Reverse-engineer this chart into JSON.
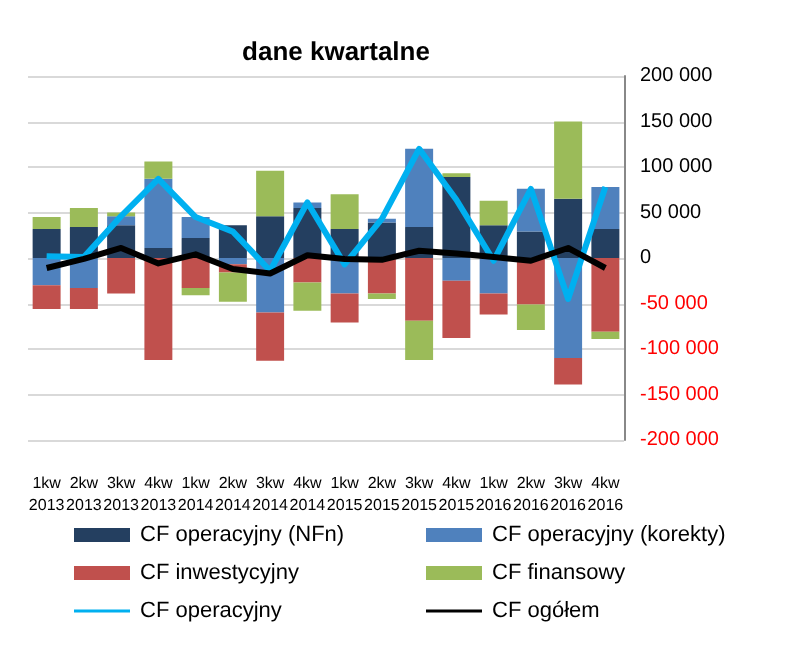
{
  "chart_data": {
    "type": "bar",
    "title": "dane kwartalne",
    "stacked": true,
    "categories": [
      "1kw 2013",
      "2kw 2013",
      "3kw 2013",
      "4kw 2013",
      "1kw 2014",
      "2kw 2014",
      "3kw 2014",
      "4kw 2014",
      "1kw 2015",
      "2kw 2015",
      "3kw 2015",
      "4kw 2015",
      "1kw 2016",
      "2kw 2016",
      "3kw 2016",
      "4kw 2016"
    ],
    "series": [
      {
        "name": "CF operacyjny (NFn)",
        "color": "#243f60",
        "values": [
          32000,
          34000,
          36000,
          11000,
          22000,
          36000,
          46000,
          55000,
          32000,
          39000,
          34000,
          89000,
          36000,
          29000,
          65000,
          32000
        ]
      },
      {
        "name": "CF operacyjny (korekty)",
        "color": "#4f81bd",
        "values": [
          -30000,
          -33000,
          10000,
          76000,
          23000,
          -7000,
          -60000,
          6000,
          -39000,
          4000,
          86000,
          -25000,
          -39000,
          47000,
          -110000,
          46000
        ]
      },
      {
        "name": "CF inwestycyjny",
        "color": "#c0504d",
        "values": [
          -26000,
          -23000,
          -39000,
          -112000,
          -33000,
          -9000,
          -53000,
          -27000,
          -32000,
          -39000,
          -69000,
          -63000,
          -23000,
          -51000,
          -29000,
          -81000
        ]
      },
      {
        "name": "CF finansowy",
        "color": "#9bbb59",
        "values": [
          13000,
          21000,
          4000,
          19000,
          -8000,
          -32000,
          50000,
          -31000,
          38000,
          -6000,
          -43000,
          4000,
          27000,
          -28000,
          85000,
          -8000
        ]
      },
      {
        "name": "CF operacyjny",
        "type": "line",
        "color": "#00b0f0",
        "values": [
          2000,
          1000,
          46000,
          87000,
          45000,
          29000,
          -14000,
          61000,
          -7000,
          43000,
          120000,
          64000,
          -3000,
          76000,
          -45000,
          78000
        ]
      },
      {
        "name": "CF ogółem",
        "type": "line",
        "color": "#000000",
        "values": [
          -11000,
          -1000,
          11000,
          -6000,
          4000,
          -12000,
          -17000,
          3000,
          -1000,
          -2000,
          8000,
          5000,
          1000,
          -3000,
          11000,
          -11000
        ]
      }
    ],
    "ylim": [
      -200000,
      200000
    ],
    "yticks": [
      {
        "value": -200000,
        "label": "-200 000"
      },
      {
        "value": -150000,
        "label": "-150 000"
      },
      {
        "value": -100000,
        "label": "-100 000"
      },
      {
        "value": -50000,
        "label": "-50 000"
      },
      {
        "value": 0,
        "label": "0"
      },
      {
        "value": 50000,
        "label": "50 000"
      },
      {
        "value": 100000,
        "label": "100 000"
      },
      {
        "value": 150000,
        "label": "150 000"
      },
      {
        "value": 200000,
        "label": "200 000"
      }
    ],
    "grid": "y",
    "legend": "bottom",
    "marker": "none"
  }
}
